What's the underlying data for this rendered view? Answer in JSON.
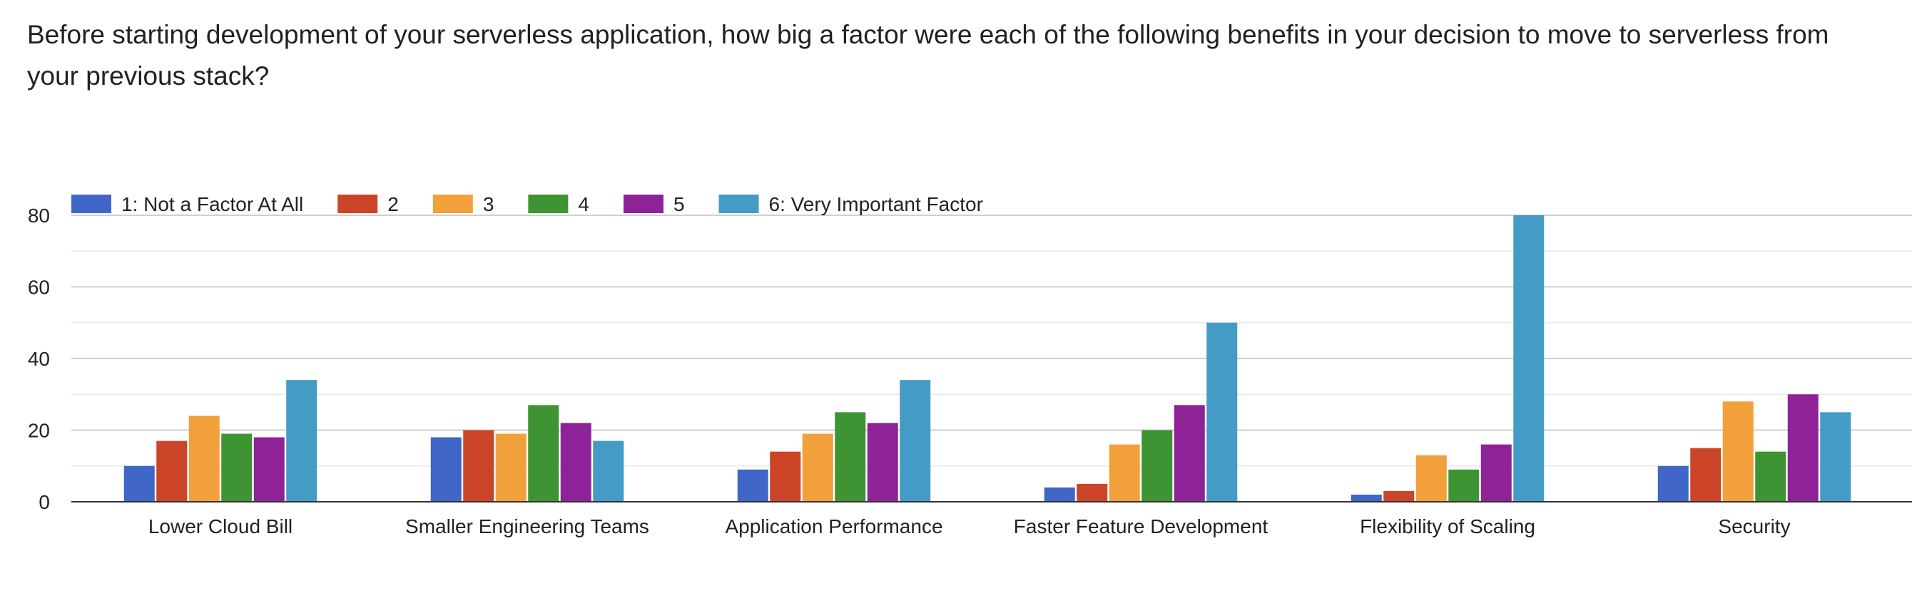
{
  "question": "Before starting development of your serverless application, how big a factor were each of the following benefits in your decision to move to serverless from your previous stack?",
  "chart_data": {
    "type": "bar",
    "title": "",
    "xlabel": "",
    "ylabel": "",
    "ylim": [
      0,
      80
    ],
    "yticks": [
      0,
      20,
      40,
      60,
      80
    ],
    "grid": true,
    "legend_position": "top-left",
    "categories": [
      "Lower Cloud Bill",
      "Smaller Engineering Teams",
      "Application Performance",
      "Faster Feature Development",
      "Flexibility of Scaling",
      "Security"
    ],
    "series": [
      {
        "name": "1: Not a Factor At All",
        "color": "#4066c7",
        "values": [
          10,
          18,
          9,
          4,
          2,
          10
        ]
      },
      {
        "name": "2",
        "color": "#cc4427",
        "values": [
          17,
          20,
          14,
          5,
          3,
          15
        ]
      },
      {
        "name": "3",
        "color": "#f2a03c",
        "values": [
          24,
          19,
          19,
          16,
          13,
          28
        ]
      },
      {
        "name": "4",
        "color": "#3e9432",
        "values": [
          19,
          27,
          25,
          20,
          9,
          14
        ]
      },
      {
        "name": "5",
        "color": "#8e2397",
        "values": [
          18,
          22,
          22,
          27,
          16,
          30
        ]
      },
      {
        "name": "6: Very Important Factor",
        "color": "#449bc6",
        "values": [
          34,
          17,
          34,
          50,
          80,
          25
        ]
      }
    ]
  }
}
